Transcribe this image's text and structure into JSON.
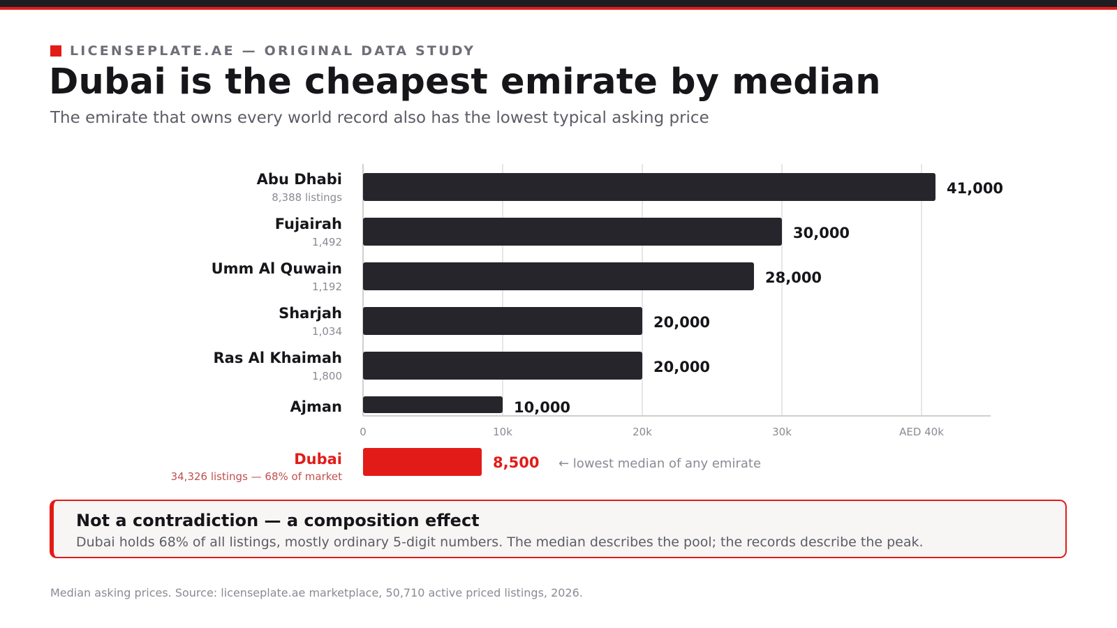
{
  "header": {
    "eyebrow": "LICENSEPLATE.AE — ORIGINAL DATA STUDY",
    "title": "Dubai is the cheapest emirate by median",
    "subtitle": "The emirate that owns every world record also has the lowest typical asking price"
  },
  "colors": {
    "accent": "#e31b18",
    "bar": "#25252b",
    "grid": "#e6e6e6",
    "text": "#16161a",
    "muted": "#8a8a94"
  },
  "chart_data": {
    "type": "bar",
    "orientation": "horizontal",
    "categories": [
      "Abu Dhabi",
      "Fujairah",
      "Umm Al Quwain",
      "Sharjah",
      "Ras Al Khaimah",
      "Ajman"
    ],
    "listings": [
      "8,388 listings",
      "1,492",
      "1,192",
      "1,034",
      "1,800",
      ""
    ],
    "values": [
      41000,
      30000,
      28000,
      20000,
      20000,
      10000
    ],
    "value_labels": [
      "41,000",
      "30,000",
      "28,000",
      "20,000",
      "20,000",
      "10,000"
    ],
    "xlim": [
      0,
      45000
    ],
    "ticks": [
      0,
      10000,
      20000,
      30000,
      40000
    ],
    "tick_labels": [
      "0",
      "10k",
      "20k",
      "30k",
      "AED 40k"
    ],
    "grid": true,
    "highlight": {
      "category": "Dubai",
      "value": 8500,
      "value_label": "8,500",
      "sublabel": "34,326 listings — 68% of market",
      "annotation": "← lowest median of any emirate"
    }
  },
  "callout": {
    "heading": "Not a contradiction — a composition effect",
    "body": "Dubai holds 68% of all listings, mostly ordinary 5-digit numbers. The median describes the pool; the records describe the peak."
  },
  "footer": {
    "source": "Median asking prices. Source: licenseplate.ae marketplace, 50,710 active priced listings, 2026."
  }
}
